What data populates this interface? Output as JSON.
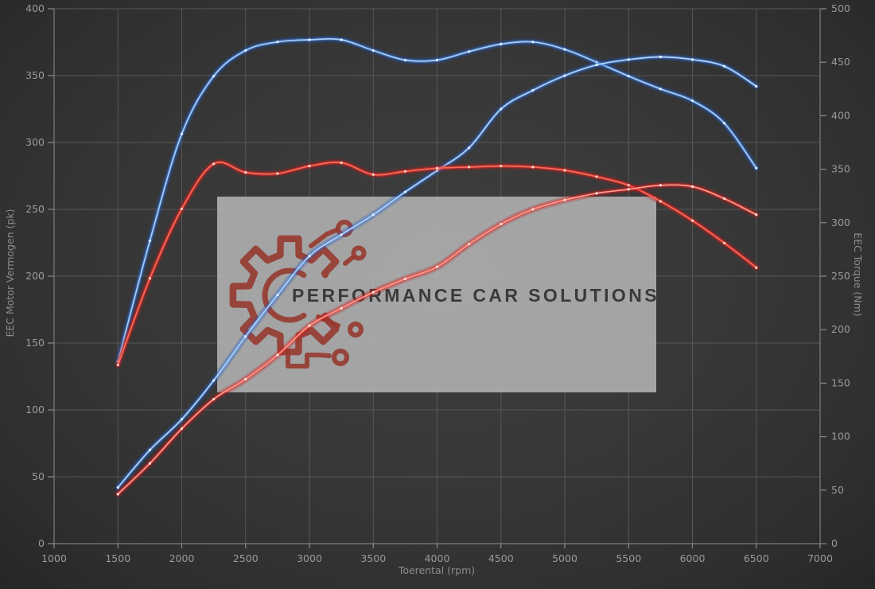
{
  "chart_data": {
    "type": "line",
    "title": "",
    "x": {
      "label": "Toerental (rpm)",
      "min": 1000,
      "max": 7000,
      "ticks": [
        1000,
        1500,
        2000,
        2500,
        3000,
        3500,
        4000,
        4500,
        5000,
        5500,
        6000,
        6500,
        7000
      ]
    },
    "y_left": {
      "label": "EEC Motor Vermogen (pk)",
      "min": 0,
      "max": 400,
      "ticks": [
        0,
        50,
        100,
        150,
        200,
        250,
        300,
        350,
        400
      ]
    },
    "y_right": {
      "label": "EEC Torque (Nm)",
      "min": 0,
      "max": 500,
      "ticks": [
        0,
        50,
        100,
        150,
        200,
        250,
        300,
        350,
        400,
        450,
        500
      ]
    },
    "grid": "horizontal lines follow left axis; vertical lines every 500 rpm",
    "legend": "none visible",
    "rpm": [
      1500,
      1750,
      2000,
      2250,
      2500,
      2750,
      3000,
      3250,
      3500,
      3750,
      4000,
      4250,
      4500,
      4750,
      5000,
      5250,
      5500,
      5750,
      6000,
      6250,
      6500
    ],
    "series": [
      {
        "id": "torque_blue",
        "axis": "right",
        "unit": "Nm",
        "color_glow": "#1a55c4",
        "color_mid": "#3d7fdd",
        "color_core": "#a9cdf5",
        "color_marker": "#e8f2ff",
        "values": [
          170,
          283,
          383,
          437,
          461,
          469,
          471,
          471,
          461,
          452,
          452,
          460,
          467,
          469,
          462,
          450,
          437,
          425,
          414,
          393,
          351
        ]
      },
      {
        "id": "power_blue",
        "axis": "left",
        "unit": "pk",
        "color_glow": "#1a55c4",
        "color_mid": "#3d7fdd",
        "color_core": "#b5d4f7",
        "color_marker": "#e8f2ff",
        "values": [
          42,
          70,
          93,
          122,
          155,
          186,
          215,
          231,
          246,
          263,
          279,
          296,
          325,
          339,
          350,
          358,
          362,
          364,
          362,
          357,
          342
        ]
      },
      {
        "id": "torque_red",
        "axis": "right",
        "unit": "Nm",
        "color_glow": "#c41414",
        "color_mid": "#e62e2e",
        "color_core": "#ff6a55",
        "color_marker": "#ffd8d0",
        "values": [
          167,
          248,
          313,
          355,
          347,
          346,
          353,
          356,
          345,
          348,
          351,
          352,
          353,
          352,
          349,
          343,
          335,
          320,
          302,
          281,
          258
        ]
      },
      {
        "id": "power_red",
        "axis": "left",
        "unit": "pk",
        "color_glow": "#c41414",
        "color_mid": "#e62e2e",
        "color_core": "#ff9a8c",
        "color_marker": "#ffe4de",
        "values": [
          37,
          60,
          86,
          108,
          123,
          141,
          163,
          176,
          188,
          198,
          207,
          224,
          239,
          250,
          257,
          262,
          265,
          268,
          267,
          258,
          246
        ]
      }
    ]
  },
  "watermark": {
    "text": "PERFORMANCE CAR SOLUTIONS",
    "icon": "gear-circuit-icon",
    "box_color": "#b9b9b9",
    "logo_color": "#963a30",
    "text_color": "#3a3a3a"
  },
  "colors": {
    "background": "#363636",
    "gridline": "#575757",
    "tick_text": "#9a9a9a",
    "curve_blue": "#3d7fdd",
    "curve_red": "#e62e2e"
  }
}
